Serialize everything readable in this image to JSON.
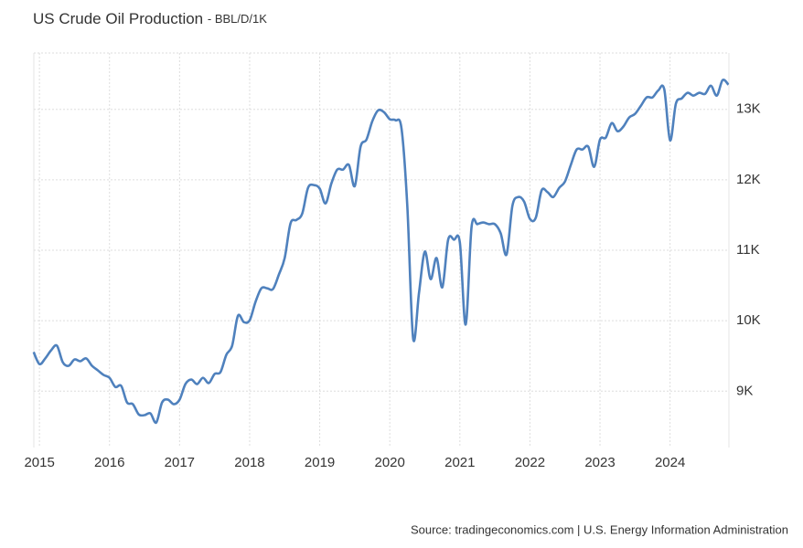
{
  "chart_data": {
    "type": "line",
    "title": "US Crude Oil Production",
    "subtitle": "- BBL/D/1K",
    "source": "Source: tradingeconomics.com | U.S. Energy Information Administration",
    "grid": true,
    "xlim": [
      2014.92,
      2024.84
    ],
    "ylim": [
      8200,
      13800
    ],
    "xticks": [
      2015,
      2016,
      2017,
      2018,
      2019,
      2020,
      2021,
      2022,
      2023,
      2024
    ],
    "yticks": [
      {
        "value": 9000,
        "label": "9K"
      },
      {
        "value": 10000,
        "label": "10K"
      },
      {
        "value": 11000,
        "label": "11K"
      },
      {
        "value": 12000,
        "label": "12K"
      },
      {
        "value": 13000,
        "label": "13K"
      }
    ],
    "x": [
      2014.917,
      2015.0,
      2015.083,
      2015.167,
      2015.25,
      2015.333,
      2015.417,
      2015.5,
      2015.583,
      2015.667,
      2015.75,
      2015.833,
      2015.917,
      2016.0,
      2016.083,
      2016.167,
      2016.25,
      2016.333,
      2016.417,
      2016.5,
      2016.583,
      2016.667,
      2016.75,
      2016.833,
      2016.917,
      2017.0,
      2017.083,
      2017.167,
      2017.25,
      2017.333,
      2017.417,
      2017.5,
      2017.583,
      2017.667,
      2017.75,
      2017.833,
      2017.917,
      2018.0,
      2018.083,
      2018.167,
      2018.25,
      2018.333,
      2018.417,
      2018.5,
      2018.583,
      2018.667,
      2018.75,
      2018.833,
      2018.917,
      2019.0,
      2019.083,
      2019.167,
      2019.25,
      2019.333,
      2019.417,
      2019.5,
      2019.583,
      2019.667,
      2019.75,
      2019.833,
      2019.917,
      2020.0,
      2020.083,
      2020.167,
      2020.25,
      2020.333,
      2020.417,
      2020.5,
      2020.583,
      2020.667,
      2020.75,
      2020.833,
      2020.917,
      2021.0,
      2021.083,
      2021.167,
      2021.25,
      2021.333,
      2021.417,
      2021.5,
      2021.583,
      2021.667,
      2021.75,
      2021.833,
      2021.917,
      2022.0,
      2022.083,
      2022.167,
      2022.25,
      2022.333,
      2022.417,
      2022.5,
      2022.583,
      2022.667,
      2022.75,
      2022.833,
      2022.917,
      2023.0,
      2023.083,
      2023.167,
      2023.25,
      2023.333,
      2023.417,
      2023.5,
      2023.583,
      2023.667,
      2023.75,
      2023.833,
      2023.917,
      2024.0,
      2024.083,
      2024.167,
      2024.25,
      2024.333,
      2024.417,
      2024.5,
      2024.583,
      2024.667,
      2024.75,
      2024.833
    ],
    "series": [
      {
        "name": "US Crude Oil Production",
        "color": "#4f81bd",
        "values": [
          9555,
          9385,
          9465,
          9580,
          9645,
          9410,
          9360,
          9450,
          9425,
          9465,
          9360,
          9295,
          9230,
          9190,
          9060,
          9075,
          8840,
          8815,
          8670,
          8660,
          8685,
          8555,
          8840,
          8880,
          8815,
          8880,
          9100,
          9165,
          9100,
          9190,
          9115,
          9245,
          9270,
          9515,
          9645,
          10070,
          9980,
          10005,
          10265,
          10460,
          10460,
          10450,
          10655,
          10890,
          11380,
          11430,
          11520,
          11885,
          11925,
          11875,
          11665,
          11950,
          12145,
          12145,
          12210,
          11910,
          12470,
          12570,
          12830,
          12985,
          12960,
          12860,
          12845,
          12730,
          11630,
          9750,
          10395,
          10980,
          10590,
          10890,
          10475,
          11150,
          11150,
          11110,
          9945,
          11330,
          11370,
          11395,
          11370,
          11370,
          11240,
          10940,
          11630,
          11755,
          11690,
          11445,
          11460,
          11850,
          11825,
          11755,
          11885,
          11975,
          12210,
          12430,
          12430,
          12470,
          12185,
          12570,
          12600,
          12805,
          12690,
          12755,
          12885,
          12935,
          13050,
          13170,
          13170,
          13270,
          13285,
          12560,
          13080,
          13155,
          13235,
          13195,
          13235,
          13220,
          13335,
          13195,
          13415,
          13350
        ]
      }
    ]
  }
}
